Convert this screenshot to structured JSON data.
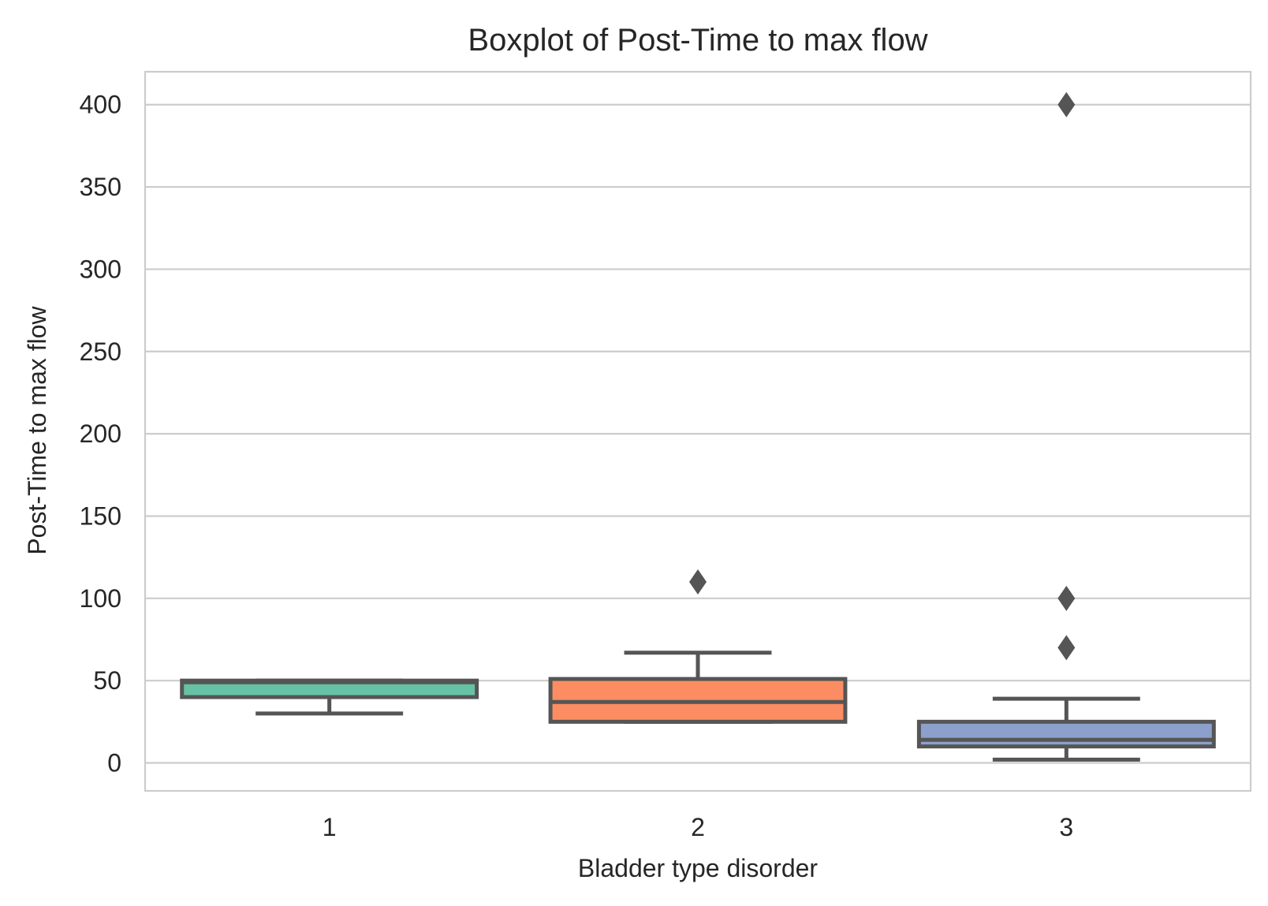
{
  "chart_data": {
    "type": "box",
    "title": "Boxplot of Post-Time to max flow",
    "xlabel": "Bladder type disorder",
    "ylabel": "Post-Time to max flow",
    "ylim": [
      -17,
      420
    ],
    "yticks": [
      0,
      50,
      100,
      150,
      200,
      250,
      300,
      350,
      400
    ],
    "grid": true,
    "categories": [
      "1",
      "2",
      "3"
    ],
    "boxes": [
      {
        "category": "1",
        "color": "#66c2a5",
        "whisker_low": 30,
        "q1": 40,
        "median": 49,
        "q3": 50,
        "whisker_high": 50,
        "outliers": []
      },
      {
        "category": "2",
        "color": "#fc8d62",
        "whisker_low": 25,
        "q1": 25,
        "median": 37,
        "q3": 51,
        "whisker_high": 67,
        "outliers": [
          110
        ]
      },
      {
        "category": "3",
        "color": "#8da0cb",
        "whisker_low": 2,
        "q1": 10,
        "median": 14,
        "q3": 25,
        "whisker_high": 39,
        "outliers": [
          70,
          100,
          400
        ]
      }
    ]
  }
}
